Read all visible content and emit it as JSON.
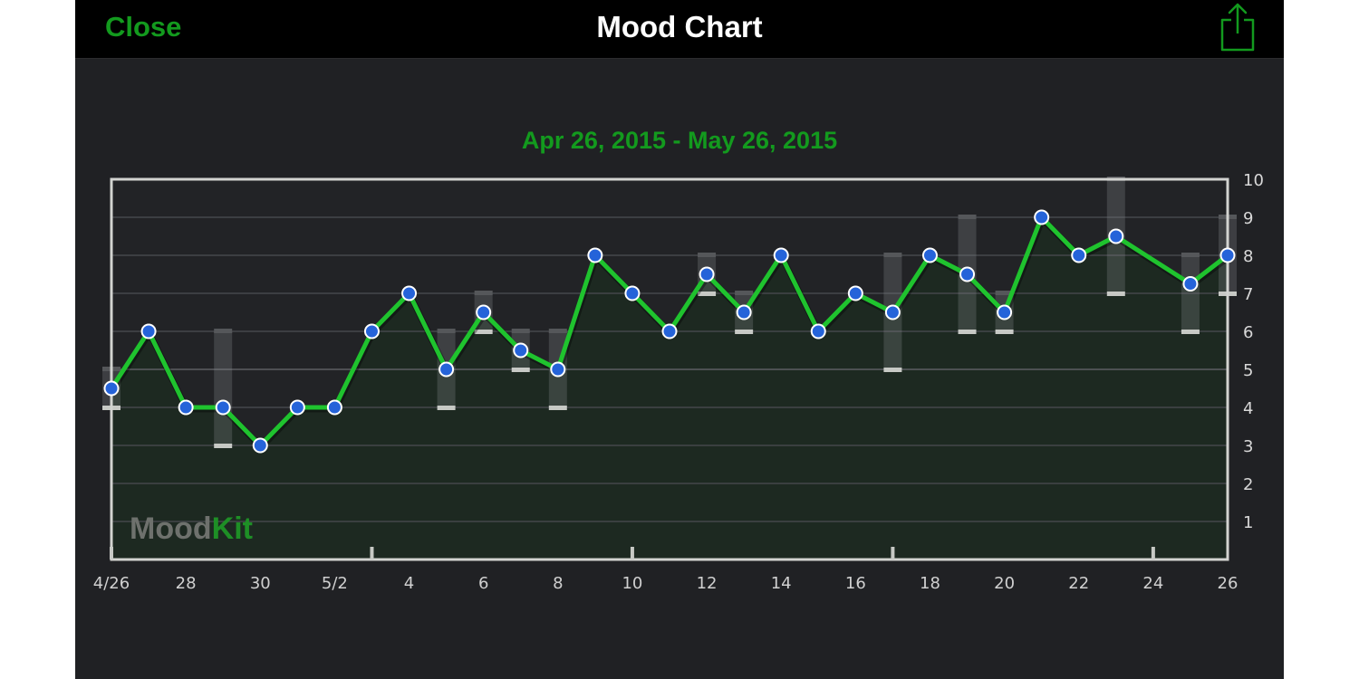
{
  "navbar": {
    "close_label": "Close",
    "title": "Mood Chart",
    "share_icon": "share-icon"
  },
  "date_range": "Apr 26, 2015 - May 26, 2015",
  "watermark": {
    "part1": "Mood",
    "part2": "Kit"
  },
  "colors": {
    "accent": "#139a1e",
    "line": "#1fc32e",
    "point": "#2563d9",
    "background": "#202124",
    "plot_fill": "#1d2a21"
  },
  "chart_data": {
    "type": "line",
    "title": "Apr 26, 2015 - May 26, 2015",
    "x": [
      "4/26",
      "4/27",
      "4/28",
      "4/29",
      "4/30",
      "5/1",
      "5/2",
      "5/3",
      "5/4",
      "5/5",
      "5/6",
      "5/7",
      "5/8",
      "5/9",
      "5/10",
      "5/11",
      "5/12",
      "5/13",
      "5/14",
      "5/15",
      "5/16",
      "5/17",
      "5/18",
      "5/19",
      "5/20",
      "5/21",
      "5/22",
      "5/23",
      "5/24",
      "5/25",
      "5/26"
    ],
    "x_tick_labels": [
      "4/26",
      "28",
      "30",
      "5/2",
      "4",
      "6",
      "8",
      "10",
      "12",
      "14",
      "16",
      "18",
      "20",
      "22",
      "24",
      "26"
    ],
    "y_tick_labels": [
      "1",
      "2",
      "3",
      "4",
      "5",
      "6",
      "7",
      "8",
      "9",
      "10"
    ],
    "ylim": [
      0,
      10
    ],
    "grid": true,
    "y_axis_position": "right",
    "points": [
      {
        "x": "4/26",
        "y": 4.5
      },
      {
        "x": "4/27",
        "y": 6
      },
      {
        "x": "4/28",
        "y": 4
      },
      {
        "x": "4/29",
        "y": 4
      },
      {
        "x": "4/30",
        "y": 3
      },
      {
        "x": "5/1",
        "y": 4
      },
      {
        "x": "5/2",
        "y": 4
      },
      {
        "x": "5/3",
        "y": 6
      },
      {
        "x": "5/4",
        "y": 7
      },
      {
        "x": "5/5",
        "y": 5
      },
      {
        "x": "5/6",
        "y": 6.5
      },
      {
        "x": "5/7",
        "y": 5.5
      },
      {
        "x": "5/8",
        "y": 5
      },
      {
        "x": "5/9",
        "y": 8
      },
      {
        "x": "5/10",
        "y": 7
      },
      {
        "x": "5/11",
        "y": 6
      },
      {
        "x": "5/12",
        "y": 7.5
      },
      {
        "x": "5/13",
        "y": 6.5
      },
      {
        "x": "5/14",
        "y": 8
      },
      {
        "x": "5/15",
        "y": 6
      },
      {
        "x": "5/16",
        "y": 7
      },
      {
        "x": "5/17",
        "y": 6.5
      },
      {
        "x": "5/18",
        "y": 8
      },
      {
        "x": "5/19",
        "y": 7.5
      },
      {
        "x": "5/20",
        "y": 6.5
      },
      {
        "x": "5/21",
        "y": 9
      },
      {
        "x": "5/22",
        "y": 8
      },
      {
        "x": "5/23",
        "y": 8.5
      },
      {
        "x": "5/25",
        "y": 7.25
      },
      {
        "x": "5/26",
        "y": 8
      }
    ],
    "ranges": [
      {
        "x": "4/26",
        "low": 4,
        "high": 5
      },
      {
        "x": "4/29",
        "low": 3,
        "high": 6
      },
      {
        "x": "5/5",
        "low": 4,
        "high": 6
      },
      {
        "x": "5/6",
        "low": 6,
        "high": 7
      },
      {
        "x": "5/7",
        "low": 5,
        "high": 6
      },
      {
        "x": "5/8",
        "low": 4,
        "high": 6
      },
      {
        "x": "5/12",
        "low": 7,
        "high": 8
      },
      {
        "x": "5/13",
        "low": 6,
        "high": 7
      },
      {
        "x": "5/17",
        "low": 5,
        "high": 8
      },
      {
        "x": "5/19",
        "low": 6,
        "high": 9
      },
      {
        "x": "5/20",
        "low": 6,
        "high": 7
      },
      {
        "x": "5/23",
        "low": 7,
        "high": 10
      },
      {
        "x": "5/25",
        "low": 6,
        "high": 8
      },
      {
        "x": "5/26",
        "low": 7,
        "high": 9
      }
    ]
  }
}
